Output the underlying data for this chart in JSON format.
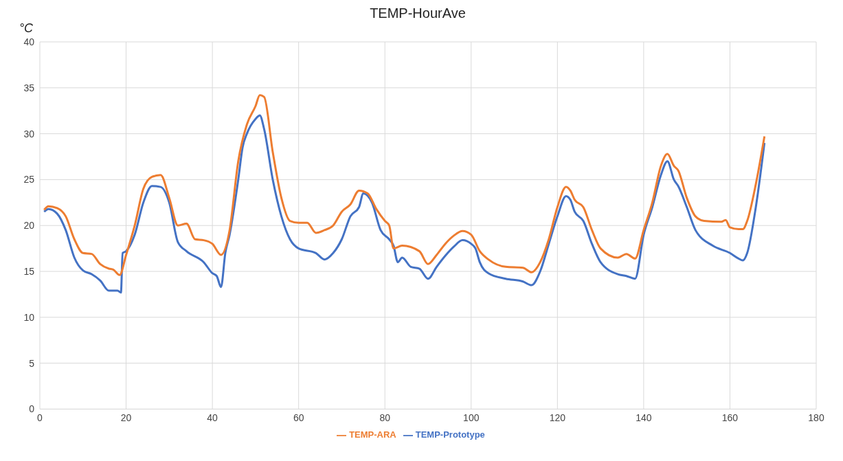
{
  "chart_data": {
    "type": "line",
    "title": "TEMP-HourAve",
    "ylabel": "°C",
    "xlim": [
      0,
      180
    ],
    "xticks": [
      0,
      20,
      40,
      60,
      80,
      100,
      120,
      140,
      160,
      180
    ],
    "ylim": [
      0,
      40
    ],
    "yticks": [
      0,
      5,
      10,
      15,
      20,
      25,
      30,
      35,
      40
    ],
    "grid": true,
    "legend": "bottom",
    "marker": "none",
    "line_style": "solid",
    "series": [
      {
        "name": "TEMP-Prototype",
        "color": "#4472c4",
        "x": [
          1,
          2,
          4,
          6,
          8,
          10,
          12,
          14,
          16,
          18,
          18.8,
          19.2,
          20,
          22,
          24,
          26,
          28,
          30,
          32,
          34,
          38,
          40,
          41,
          42,
          43,
          44,
          46,
          47,
          48,
          50,
          51,
          52,
          54,
          56,
          58,
          60,
          64,
          66,
          68,
          70,
          72,
          74,
          75,
          77,
          79,
          81,
          82,
          83,
          84,
          86,
          88,
          90,
          92,
          94,
          96,
          98,
          100,
          101,
          102,
          104,
          108,
          112,
          114,
          116,
          118,
          120,
          122,
          123,
          124,
          126,
          128,
          130,
          134,
          136,
          138,
          140,
          142,
          144,
          145.5,
          147,
          148,
          150,
          152,
          156,
          160,
          162,
          163,
          164,
          166,
          168
        ],
        "values": [
          21.5,
          21.8,
          21.3,
          19.5,
          16.5,
          15.1,
          14.7,
          14,
          12.9,
          12.9,
          12.7,
          17,
          17.2,
          19,
          22.5,
          24.3,
          24.2,
          22.5,
          18.2,
          17.2,
          16,
          14.8,
          14.5,
          13.3,
          17,
          19,
          25,
          28.5,
          30,
          31.6,
          32,
          30.5,
          25,
          21,
          18.5,
          17.5,
          17,
          16.3,
          17,
          18.5,
          21,
          22,
          23.5,
          22.5,
          19.5,
          18.5,
          17.8,
          16,
          16.5,
          15.5,
          15.3,
          14.2,
          15.5,
          16.7,
          17.7,
          18.4,
          18,
          17.5,
          16,
          14.8,
          14.2,
          13.9,
          13.5,
          15,
          18,
          21,
          23.2,
          22.8,
          21.5,
          20.5,
          18,
          16,
          14.7,
          14.5,
          14.2,
          19,
          22,
          25.5,
          27,
          25,
          24.3,
          22,
          19.5,
          17.8,
          17,
          16.4,
          16.2,
          17,
          22,
          29
        ]
      },
      {
        "name": "TEMP-ARA",
        "color": "#ed7d31",
        "x": [
          1,
          2,
          4,
          6,
          8,
          10,
          12,
          14,
          16,
          17,
          18.5,
          20,
          22,
          24,
          26,
          28,
          30,
          32,
          34,
          36,
          38,
          40,
          42,
          44,
          46,
          48,
          50,
          51,
          52,
          54,
          56,
          58,
          60,
          62,
          64,
          66,
          68,
          70,
          72,
          74,
          76,
          78,
          80,
          81,
          82,
          84,
          88,
          90,
          92,
          94,
          96,
          98,
          100,
          102,
          104,
          108,
          112,
          114,
          116,
          118,
          120,
          122,
          123,
          124,
          126,
          128,
          130,
          134,
          136,
          138,
          140,
          142,
          144,
          145.5,
          147,
          148,
          150,
          152,
          154,
          158,
          159,
          160,
          162,
          163,
          164,
          166,
          168
        ],
        "values": [
          21.7,
          22.1,
          21.9,
          21,
          18.5,
          17,
          16.9,
          15.8,
          15.3,
          15.2,
          14.6,
          16.8,
          20,
          24,
          25.3,
          25.5,
          23,
          20,
          20.2,
          18.5,
          18.4,
          18,
          16.8,
          19.5,
          27,
          31,
          33,
          34.2,
          34,
          28,
          23,
          20.5,
          20.3,
          20.3,
          19.2,
          19.5,
          20,
          21.5,
          22.3,
          23.8,
          23.5,
          21.8,
          20.5,
          20,
          17.5,
          17.8,
          17.2,
          15.8,
          16.8,
          18,
          18.9,
          19.4,
          19,
          17.2,
          16.3,
          15.5,
          15.4,
          14.9,
          16,
          18.5,
          22,
          24.2,
          23.8,
          22.8,
          22,
          19.5,
          17.5,
          16.5,
          16.9,
          16.4,
          19.5,
          22.5,
          26.5,
          27.8,
          26.5,
          26,
          23,
          21,
          20.5,
          20.4,
          20.6,
          19.8,
          19.6,
          19.6,
          20.5,
          24.5,
          29.7
        ]
      }
    ]
  }
}
